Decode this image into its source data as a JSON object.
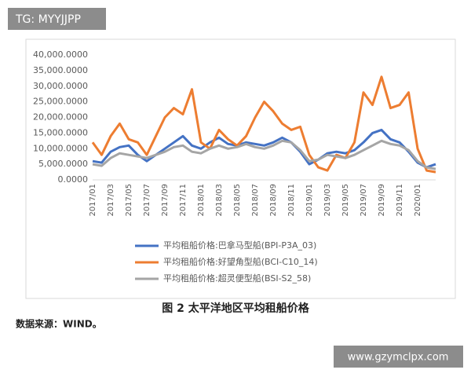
{
  "watermark": "TG: MYYJJPP",
  "caption": "图 2  太平洋地区平均租船价格",
  "source": "数据来源：WIND。",
  "site_url": "www.gzymclpx.com",
  "chart_data": {
    "type": "line",
    "categories": [
      "2017/01",
      null,
      "2017/03",
      null,
      "2017/05",
      null,
      "2017/07",
      null,
      "2017/09",
      null,
      "2017/11",
      null,
      "2018/01",
      null,
      "2018/03",
      null,
      "2018/05",
      null,
      "2018/07",
      null,
      "2018/09",
      null,
      "2018/11",
      null,
      "2019/01",
      null,
      "2019/03",
      null,
      "2019/05",
      null,
      "2019/07",
      null,
      "2019/09",
      null,
      "2019/11",
      null,
      "2020/01",
      null,
      null
    ],
    "series": [
      {
        "name": "平均租船价格:巴拿马型船(BPI-P3A_03)",
        "color": "#4472c4",
        "values": [
          6000,
          5500,
          9000,
          10500,
          11000,
          8000,
          6000,
          8000,
          10000,
          12000,
          14000,
          11000,
          10000,
          12000,
          13500,
          11500,
          11000,
          12000,
          11500,
          11000,
          12000,
          13500,
          12000,
          9000,
          5000,
          6500,
          8500,
          9000,
          8500,
          9500,
          12000,
          15000,
          16000,
          13000,
          12000,
          9000,
          5500,
          4000,
          5000
        ]
      },
      {
        "name": "平均租船价格:好望角型船(BCI-C10_14)",
        "color": "#ed7d31",
        "values": [
          12000,
          8000,
          14000,
          18000,
          13000,
          12000,
          8000,
          14000,
          20000,
          23000,
          21000,
          29000,
          12000,
          10000,
          16000,
          13000,
          11000,
          14000,
          20000,
          25000,
          22000,
          18000,
          16000,
          17000,
          8000,
          4000,
          3000,
          8000,
          7000,
          12000,
          28000,
          24000,
          33000,
          23000,
          24000,
          28000,
          10000,
          3000,
          2500
        ]
      },
      {
        "name": "平均租船价格:超灵便型船(BSI-S2_58)",
        "color": "#a5a5a5",
        "values": [
          5000,
          4500,
          7000,
          8500,
          8000,
          7500,
          7000,
          8000,
          9000,
          10500,
          11000,
          9000,
          8500,
          10000,
          11000,
          10000,
          10500,
          11500,
          10500,
          10000,
          11000,
          12500,
          12000,
          9500,
          6000,
          6500,
          8000,
          7500,
          7000,
          8000,
          9500,
          11000,
          12500,
          11500,
          11000,
          9500,
          6000,
          4000,
          3500
        ]
      }
    ],
    "ylim": [
      0,
      40000
    ],
    "yticks": [
      {
        "value": 0,
        "label": "0.0000"
      },
      {
        "value": 5000,
        "label": "5,000.0000"
      },
      {
        "value": 10000,
        "label": "10,000.0000"
      },
      {
        "value": 15000,
        "label": "15,000.0000"
      },
      {
        "value": 20000,
        "label": "20,000.0000"
      },
      {
        "value": 25000,
        "label": "25,000.0000"
      },
      {
        "value": 30000,
        "label": "30,000.0000"
      },
      {
        "value": 35000,
        "label": "35,000.0000"
      },
      {
        "value": 40000,
        "label": "40,000.0000"
      }
    ]
  }
}
